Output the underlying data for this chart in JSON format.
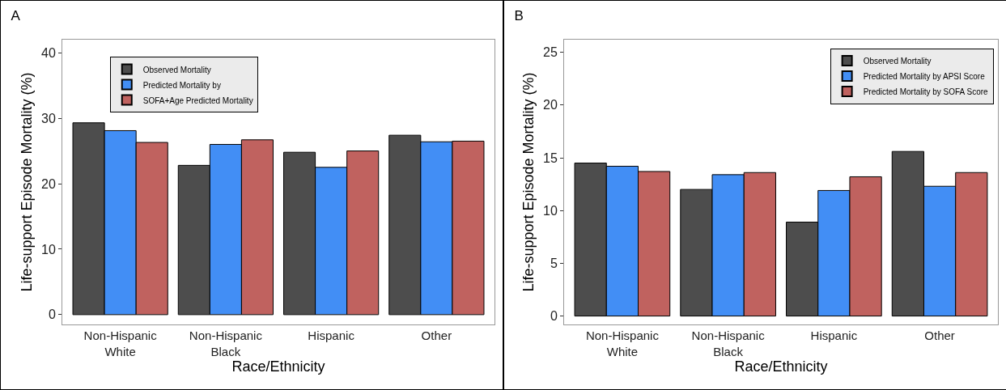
{
  "chart_data": [
    {
      "type": "bar",
      "title": "A",
      "xlabel": "Race/Ethnicity",
      "ylabel": "Life-support Episode Mortality (%)",
      "categories": [
        "Non-Hispanic White",
        "Non-Hispanic Black",
        "Hispanic",
        "Other"
      ],
      "series": [
        {
          "name": "Observed Mortality",
          "color": "#4d4d4d",
          "values": [
            29.3,
            22.8,
            24.8,
            27.4
          ]
        },
        {
          "name": "Predicted Mortality by",
          "color": "#428ef5",
          "values": [
            28.1,
            26.0,
            22.5,
            26.4
          ]
        },
        {
          "name": "SOFA+Age Predicted Mortality",
          "color": "#c0625f",
          "values": [
            26.3,
            26.7,
            25.0,
            26.5
          ]
        }
      ],
      "ylim": [
        -1.5,
        42
      ],
      "yticks": [
        0,
        10,
        20,
        30,
        40
      ],
      "grid": false,
      "legend": "top left"
    },
    {
      "type": "bar",
      "title": "B",
      "xlabel": "Race/Ethnicity",
      "ylabel": "Life-support Episode Mortality (%)",
      "categories": [
        "Non-Hispanic White",
        "Non-Hispanic Black",
        "Hispanic",
        "Other"
      ],
      "series": [
        {
          "name": "Observed Mortality",
          "color": "#4d4d4d",
          "values": [
            14.5,
            12.0,
            8.9,
            15.6
          ]
        },
        {
          "name": "Predicted Mortality by APSI Score",
          "color": "#428ef5",
          "values": [
            14.2,
            13.4,
            11.9,
            12.3
          ]
        },
        {
          "name": "Predicted Mortality by SOFA Score",
          "color": "#c0625f",
          "values": [
            13.7,
            13.6,
            13.2,
            13.6
          ]
        }
      ],
      "ylim": [
        -0.8,
        26.2
      ],
      "yticks": [
        0,
        5,
        10,
        15,
        20,
        25
      ],
      "grid": false,
      "legend": "top right"
    }
  ]
}
